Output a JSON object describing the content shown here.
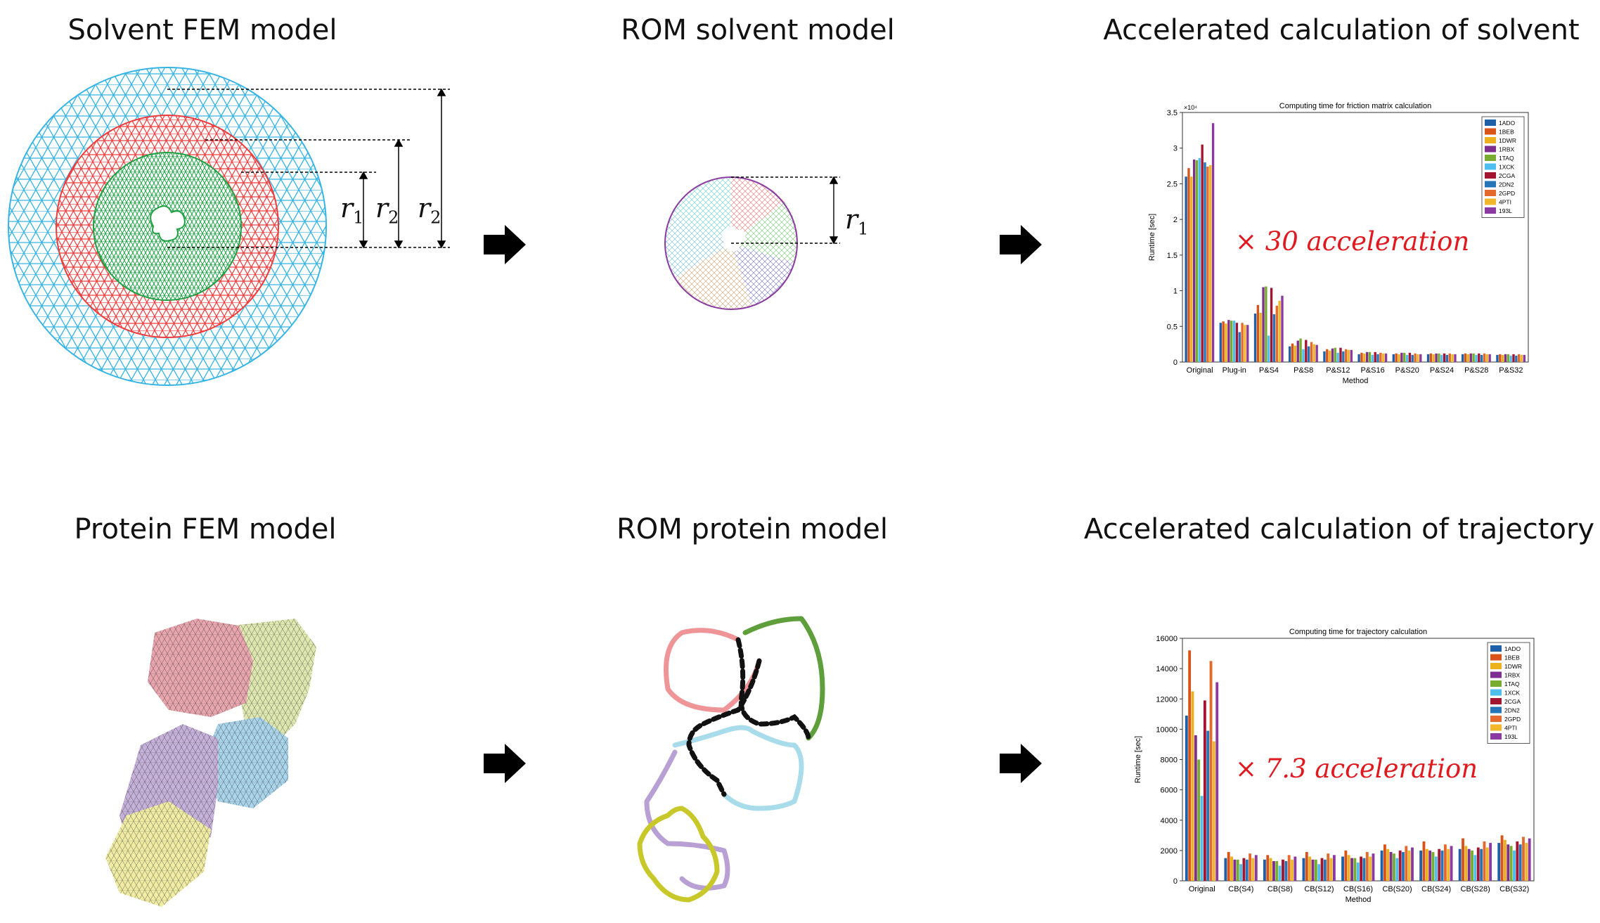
{
  "titles": {
    "solvent_fem": "Solvent FEM model",
    "rom_solvent": "ROM solvent model",
    "accel_solvent": "Accelerated calculation of solvent",
    "protein_fem": "Protein FEM model",
    "rom_protein": "ROM protein model",
    "accel_trajectory": "Accelerated calculation of trajectory"
  },
  "radius_labels": {
    "r1": "r",
    "r1_sub": "1",
    "r2": "r",
    "r2_sub": "2"
  },
  "acceleration": {
    "solvent": "× 30 acceleration",
    "trajectory": "× 7.3 acceleration"
  },
  "colors": {
    "outer_mesh": "#36b4e5",
    "middle_mesh": "#ef3b3b",
    "inner_mesh": "#1fa044",
    "accent_red": "#e0191f"
  },
  "chart_data": [
    {
      "type": "bar",
      "title": "Computing time for friction matrix calculation",
      "xlabel": "Method",
      "ylabel": "Runtime [sec]",
      "exponent_label": "×10⁴",
      "ylim": [
        0,
        3.5
      ],
      "yticks": [
        "0",
        "0.5",
        "1",
        "1.5",
        "2",
        "2.5",
        "3",
        "3.5"
      ],
      "legend_position": "top-right",
      "categories": [
        "Original",
        "Plug-in",
        "P&S4",
        "P&S8",
        "P&S12",
        "P&S16",
        "P&S20",
        "P&S24",
        "P&S28",
        "P&S32"
      ],
      "series": [
        {
          "name": "1ADO",
          "color": "#1f5fa8",
          "values": [
            2.6,
            0.55,
            0.68,
            0.22,
            0.15,
            0.11,
            0.11,
            0.11,
            0.11,
            0.1
          ]
        },
        {
          "name": "1BEB",
          "color": "#d95319",
          "values": [
            2.72,
            0.57,
            0.8,
            0.26,
            0.18,
            0.13,
            0.12,
            0.12,
            0.12,
            0.11
          ]
        },
        {
          "name": "1DWR",
          "color": "#edb120",
          "values": [
            2.6,
            0.54,
            0.69,
            0.23,
            0.16,
            0.12,
            0.11,
            0.11,
            0.11,
            0.1
          ]
        },
        {
          "name": "1RBX",
          "color": "#7e2f8e",
          "values": [
            2.84,
            0.59,
            1.05,
            0.3,
            0.19,
            0.14,
            0.13,
            0.12,
            0.12,
            0.11
          ]
        },
        {
          "name": "1TAQ",
          "color": "#77ac30",
          "values": [
            2.83,
            0.58,
            1.06,
            0.33,
            0.2,
            0.14,
            0.13,
            0.12,
            0.12,
            0.11
          ]
        },
        {
          "name": "1XCK",
          "color": "#4dbeee",
          "values": [
            2.86,
            0.58,
            0.37,
            0.18,
            0.13,
            0.1,
            0.1,
            0.1,
            0.1,
            0.09
          ]
        },
        {
          "name": "2CGA",
          "color": "#a2142f",
          "values": [
            3.05,
            0.55,
            1.04,
            0.31,
            0.2,
            0.14,
            0.13,
            0.12,
            0.12,
            0.11
          ]
        },
        {
          "name": "2DN2",
          "color": "#2574b8",
          "values": [
            2.8,
            0.42,
            0.67,
            0.22,
            0.15,
            0.11,
            0.1,
            0.1,
            0.1,
            0.09
          ]
        },
        {
          "name": "2GPD",
          "color": "#e36a2c",
          "values": [
            2.74,
            0.55,
            0.79,
            0.28,
            0.18,
            0.13,
            0.12,
            0.12,
            0.12,
            0.11
          ]
        },
        {
          "name": "4PTI",
          "color": "#f0b72a",
          "values": [
            2.76,
            0.52,
            0.86,
            0.25,
            0.17,
            0.12,
            0.11,
            0.11,
            0.11,
            0.1
          ]
        },
        {
          "name": "193L",
          "color": "#8a3aa0",
          "values": [
            3.35,
            0.52,
            0.93,
            0.24,
            0.17,
            0.12,
            0.11,
            0.11,
            0.11,
            0.1
          ]
        }
      ]
    },
    {
      "type": "bar",
      "title": "Computing time for trajectory calculation",
      "xlabel": "Method",
      "ylabel": "Runtime [sec]",
      "ylim": [
        0,
        16000
      ],
      "yticks": [
        "0",
        "2000",
        "4000",
        "6000",
        "8000",
        "10000",
        "12000",
        "14000",
        "16000"
      ],
      "legend_position": "top-right",
      "categories": [
        "Original",
        "CB(S4)",
        "CB(S8)",
        "CB(S12)",
        "CB(S16)",
        "CB(S20)",
        "CB(S24)",
        "CB(S28)",
        "CB(S32)"
      ],
      "series": [
        {
          "name": "1ADO",
          "color": "#1f5fa8",
          "values": [
            10900,
            1500,
            1400,
            1500,
            1600,
            2000,
            2000,
            2100,
            2500
          ]
        },
        {
          "name": "1BEB",
          "color": "#d95319",
          "values": [
            15200,
            1900,
            1700,
            1900,
            2000,
            2400,
            2600,
            2800,
            3000
          ]
        },
        {
          "name": "1DWR",
          "color": "#edb120",
          "values": [
            12500,
            1600,
            1500,
            1600,
            1700,
            2100,
            2100,
            2300,
            2700
          ]
        },
        {
          "name": "1RBX",
          "color": "#7e2f8e",
          "values": [
            9600,
            1400,
            1300,
            1400,
            1500,
            1900,
            2000,
            2100,
            2400
          ]
        },
        {
          "name": "1TAQ",
          "color": "#77ac30",
          "values": [
            8000,
            1400,
            1300,
            1400,
            1500,
            1800,
            1900,
            2000,
            2300
          ]
        },
        {
          "name": "1XCK",
          "color": "#4dbeee",
          "values": [
            5600,
            1100,
            1000,
            1100,
            1200,
            1500,
            1600,
            1700,
            2000
          ]
        },
        {
          "name": "2CGA",
          "color": "#a2142f",
          "values": [
            11900,
            1500,
            1400,
            1500,
            1600,
            2000,
            2100,
            2200,
            2600
          ]
        },
        {
          "name": "2DN2",
          "color": "#2574b8",
          "values": [
            9900,
            1400,
            1300,
            1400,
            1500,
            1900,
            2000,
            2100,
            2400
          ]
        },
        {
          "name": "2GPD",
          "color": "#e36a2c",
          "values": [
            14500,
            1800,
            1700,
            1800,
            1900,
            2300,
            2400,
            2600,
            2900
          ]
        },
        {
          "name": "4PTI",
          "color": "#f0b72a",
          "values": [
            9200,
            1500,
            1400,
            1500,
            1600,
            2000,
            2100,
            2200,
            2500
          ]
        },
        {
          "name": "193L",
          "color": "#8a3aa0",
          "values": [
            13100,
            1700,
            1600,
            1700,
            1800,
            2200,
            2300,
            2500,
            2800
          ]
        }
      ]
    }
  ]
}
